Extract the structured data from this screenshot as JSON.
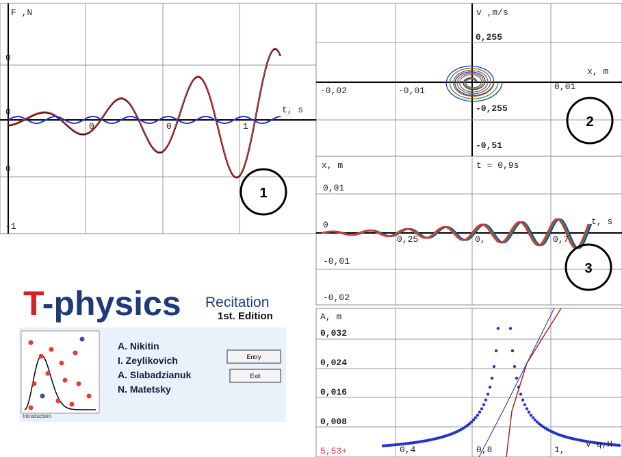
{
  "panel_force": {
    "y_label": "F  ,N",
    "x_label": "t, s",
    "y_ticks": [
      "0",
      "0",
      "0",
      "-1"
    ],
    "x_ticks": [
      "0",
      "0",
      "1"
    ],
    "badge": "1"
  },
  "panel_phase": {
    "y_label": "v  ,m/s",
    "x_label": "x, m",
    "y_ticks": [
      "0,255",
      "-0,255",
      "-0,51"
    ],
    "x_ticks": [
      "-0,02",
      "-0,01",
      "0,01"
    ],
    "badge": "2"
  },
  "panel_position": {
    "y_label": "x, m",
    "time": "t = 0,9s",
    "x_label": "t, s",
    "y_ticks": [
      "0,01",
      "0",
      "-0,01",
      "-0,02"
    ],
    "x_ticks": [
      "0,25",
      "0,",
      "0,7"
    ],
    "badge": "3"
  },
  "panel_amplitude": {
    "y_label": "A, m",
    "y_ticks": [
      "0,032",
      "0,024",
      "0,016",
      "0,008"
    ],
    "corner": "5,53+",
    "x_ticks": [
      "0,4",
      "0,8",
      "1,"
    ],
    "x_label": "v q,H"
  },
  "splash": {
    "title_t": "T",
    "title_rest": "-physics",
    "recitation": "Recitation",
    "edition": "1st. Edition",
    "authors": [
      "A. Nikitin",
      "I. Zeylikovich",
      "A. Slabadzianuk",
      "N. Matetsky"
    ],
    "buttons": [
      "Entry",
      "Exit"
    ],
    "thumbnail_caption": "Introduction"
  }
}
